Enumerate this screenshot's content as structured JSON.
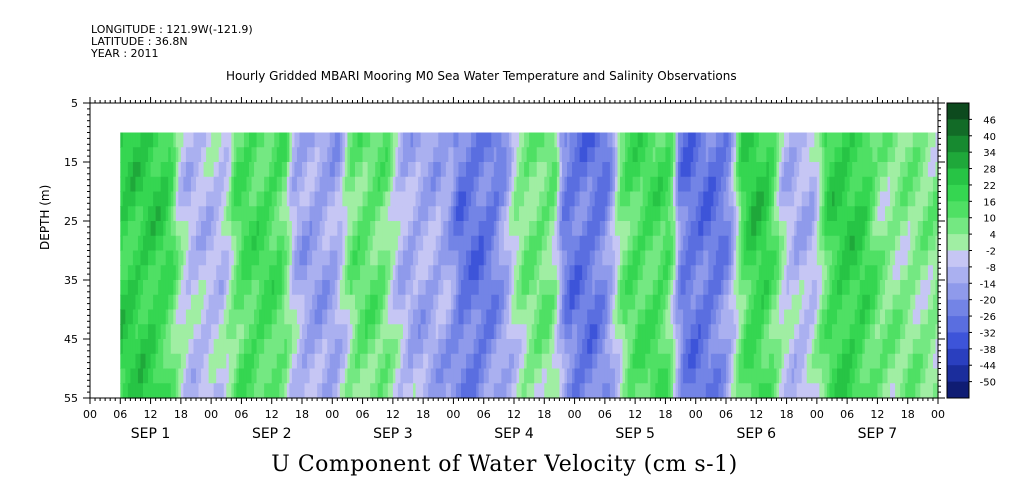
{
  "meta": {
    "longitude": "LONGITUDE : 121.9W(-121.9)",
    "latitude": "LATITUDE : 36.8N",
    "year": "YEAR : 2011"
  },
  "chart_data": {
    "type": "heatmap",
    "title": "Hourly Gridded MBARI Mooring M0 Sea Water Temperature and Salinity Observations",
    "xlabel": "U Component of Water Velocity (cm s-1)",
    "ylabel": "DEPTH (m)",
    "y_ticks": [
      5,
      15,
      25,
      35,
      45,
      55
    ],
    "ylim": [
      5,
      55
    ],
    "data_depth_range": [
      10,
      55
    ],
    "x_hour_labels": [
      "00",
      "06",
      "12",
      "18",
      "00",
      "06",
      "12",
      "18",
      "00",
      "06",
      "12",
      "18",
      "00",
      "06",
      "12",
      "18",
      "00",
      "06",
      "12",
      "18",
      "00",
      "06",
      "12",
      "18",
      "00",
      "06",
      "12",
      "18",
      "00"
    ],
    "x_day_labels": [
      "SEP  1",
      "SEP  2",
      "SEP  3",
      "SEP  4",
      "SEP  5",
      "SEP  6",
      "SEP  7"
    ],
    "x_range_hours": [
      0,
      168
    ],
    "data_start_hour": 6,
    "colorbar_levels": [
      "46",
      "40",
      "34",
      "28",
      "22",
      "16",
      "10",
      "4",
      "-2",
      "-8",
      "-14",
      "-20",
      "-26",
      "-32",
      "-38",
      "-44",
      "-50"
    ],
    "colorbar_colors": [
      "#0d4a1e",
      "#126b27",
      "#178a30",
      "#1fa83a",
      "#27c445",
      "#35d651",
      "#4fe064",
      "#74e882",
      "#a0eea3",
      "#c6c6f4",
      "#aab0f0",
      "#8f9aeb",
      "#7384e6",
      "#5a6ee0",
      "#3d54d9",
      "#2a3fbf",
      "#1b2d9c",
      "#0f1c73"
    ],
    "time_features": [
      {
        "hour": 12,
        "value": 20
      },
      {
        "hour": 22,
        "value": -8
      },
      {
        "hour": 34,
        "value": 14
      },
      {
        "hour": 45,
        "value": -14
      },
      {
        "hour": 56,
        "value": 10
      },
      {
        "hour": 64,
        "value": -12
      },
      {
        "hour": 80,
        "value": -26
      },
      {
        "hour": 86,
        "value": 8
      },
      {
        "hour": 100,
        "value": -26
      },
      {
        "hour": 108,
        "value": 14
      },
      {
        "hour": 124,
        "value": -26
      },
      {
        "hour": 132,
        "value": 22
      },
      {
        "hour": 140,
        "value": -10
      },
      {
        "hour": 150,
        "value": 20
      },
      {
        "hour": 160,
        "value": 4
      }
    ]
  }
}
